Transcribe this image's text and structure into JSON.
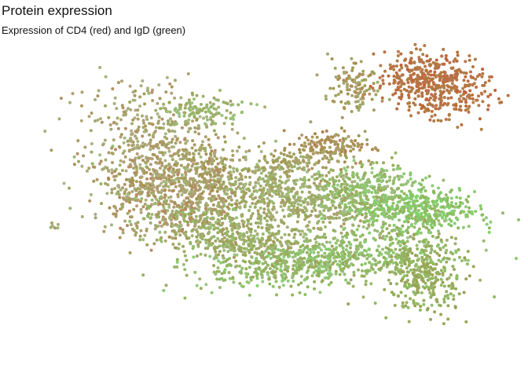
{
  "chart_data": {
    "type": "scatter",
    "title": "Protein expression",
    "subtitle": "Expression of CD4 (red) and IgD (green)",
    "xlabel": "",
    "ylabel": "",
    "axes_visible": false,
    "grid": false,
    "legend": "none",
    "xlim": [
      -12,
      12
    ],
    "ylim": [
      -11,
      11
    ],
    "color_encoding": {
      "red_channel": "CD4",
      "green_channel": "IgD",
      "low_color": "#b8b8a0",
      "cd4_high_color": "#c45a36",
      "igd_high_color": "#7fd36a"
    },
    "clusters": [
      {
        "cx": 1.0,
        "cy": 0.8,
        "sx": 3.2,
        "sy": 1.2,
        "n": 900,
        "cd4": 0.25,
        "igd": 0.45,
        "rot": -0.25
      },
      {
        "cx": -5.5,
        "cy": 4.0,
        "sx": 1.6,
        "sy": 2.2,
        "n": 500,
        "cd4": 0.3,
        "igd": 0.3,
        "rot": 0.3
      },
      {
        "cx": -4.5,
        "cy": 0.5,
        "sx": 1.8,
        "sy": 1.4,
        "n": 450,
        "cd4": 0.4,
        "igd": 0.25,
        "rot": -0.4
      },
      {
        "cx": -3.0,
        "cy": 6.6,
        "sx": 1.2,
        "sy": 0.5,
        "n": 120,
        "cd4": 0.2,
        "igd": 0.55,
        "rot": 0.1
      },
      {
        "cx": 3.0,
        "cy": -3.5,
        "sx": 3.0,
        "sy": 0.8,
        "n": 650,
        "cd4": 0.15,
        "igd": 0.7,
        "rot": 0.15
      },
      {
        "cx": -1.5,
        "cy": -2.0,
        "sx": 2.5,
        "sy": 0.9,
        "n": 500,
        "cd4": 0.25,
        "igd": 0.55,
        "rot": -0.4
      },
      {
        "cx": 7.5,
        "cy": 0.0,
        "sx": 1.6,
        "sy": 0.8,
        "n": 450,
        "cd4": 0.1,
        "igd": 0.85,
        "rot": 0.0
      },
      {
        "cx": 8.0,
        "cy": -4.5,
        "sx": 1.0,
        "sy": 1.3,
        "n": 350,
        "cd4": 0.3,
        "igd": 0.7,
        "rot": 0.2
      },
      {
        "cx": 8.5,
        "cy": 8.5,
        "sx": 1.4,
        "sy": 1.0,
        "n": 500,
        "cd4": 0.85,
        "igd": 0.2,
        "rot": -0.3
      },
      {
        "cx": 4.5,
        "cy": 8.0,
        "sx": 0.6,
        "sy": 0.9,
        "n": 120,
        "cd4": 0.4,
        "igd": 0.4,
        "rot": 0.2
      },
      {
        "cx": 3.5,
        "cy": 4.2,
        "sx": 1.0,
        "sy": 0.6,
        "n": 150,
        "cd4": 0.5,
        "igd": 0.35,
        "rot": 0.0
      },
      {
        "cx": 1.5,
        "cy": 3.2,
        "sx": 1.2,
        "sy": 0.4,
        "n": 100,
        "cd4": 0.35,
        "igd": 0.4,
        "rot": 0.3
      },
      {
        "cx": 5.0,
        "cy": 1.5,
        "sx": 1.2,
        "sy": 0.8,
        "n": 200,
        "cd4": 0.15,
        "igd": 0.65,
        "rot": 0.3
      },
      {
        "cx": -2.5,
        "cy": 2.5,
        "sx": 0.5,
        "sy": 1.0,
        "n": 90,
        "cd4": 0.4,
        "igd": 0.35,
        "rot": 0.0
      },
      {
        "cx": -10.5,
        "cy": -1.2,
        "sx": 0.15,
        "sy": 0.2,
        "n": 8,
        "cd4": 0.3,
        "igd": 0.4,
        "rot": 0.0
      }
    ]
  }
}
